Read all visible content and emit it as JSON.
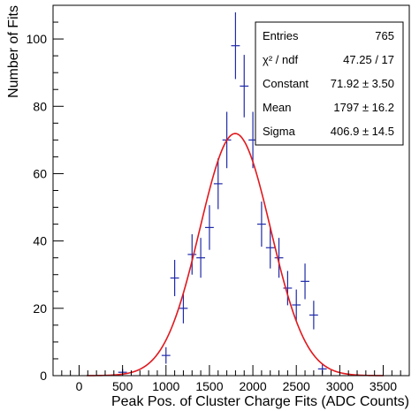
{
  "chart_data": {
    "type": "scatter",
    "title": "",
    "xlabel": "Peak Pos. of Cluster Charge Fits (ADC Counts)",
    "ylabel": "Number of Fits",
    "xlim": [
      -300,
      3800
    ],
    "ylim": [
      0,
      110
    ],
    "x_ticks": [
      0,
      500,
      1000,
      1500,
      2000,
      2500,
      3000,
      3500
    ],
    "y_ticks": [
      0,
      20,
      40,
      60,
      80,
      100
    ],
    "grid": false,
    "bin_width": 100,
    "colors": {
      "points": "#1f2aa8",
      "fit": "#e0191e",
      "axis": "#000000"
    },
    "series": [
      {
        "type": "histogram-errorbars",
        "x": [
          500,
          1000,
          1100,
          1200,
          1300,
          1400,
          1500,
          1600,
          1700,
          1800,
          1900,
          2000,
          2100,
          2200,
          2300,
          2400,
          2500,
          2600,
          2700,
          2800
        ],
        "y": [
          1,
          6,
          29,
          20,
          36,
          35,
          44,
          57,
          70,
          98,
          86,
          70,
          45,
          38,
          35,
          26,
          21,
          28,
          18,
          2
        ]
      },
      {
        "type": "gaussian-fit",
        "constant": 71.92,
        "mean": 1797,
        "sigma": 406.9
      }
    ],
    "stats_box": {
      "placement": "top-right",
      "rows": [
        {
          "label": "Entries",
          "value": "765"
        },
        {
          "label": "χ² / ndf",
          "value": "47.25 / 17"
        },
        {
          "label": "Constant",
          "value": "71.92 ± 3.50"
        },
        {
          "label": "Mean",
          "value": "1797 ± 16.2"
        },
        {
          "label": "Sigma",
          "value": "406.9 ± 14.5"
        }
      ]
    }
  }
}
